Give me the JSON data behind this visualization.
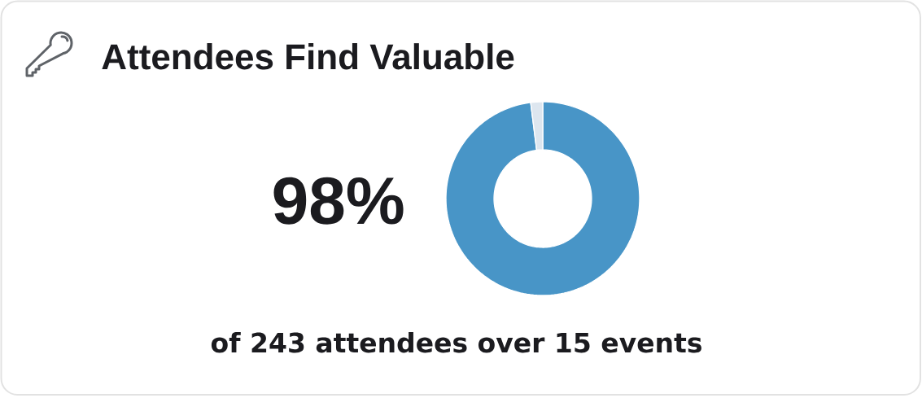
{
  "chart_data": {
    "type": "donut",
    "title": "Attendees Find Valuable",
    "categories": [
      null,
      null
    ],
    "values": [
      98,
      2
    ],
    "colors": [
      "#4895c7",
      "#dde6ef"
    ],
    "value_labels": [
      "98%",
      null
    ],
    "annotations": [
      "of 243 attendees over 15 events"
    ]
  }
}
